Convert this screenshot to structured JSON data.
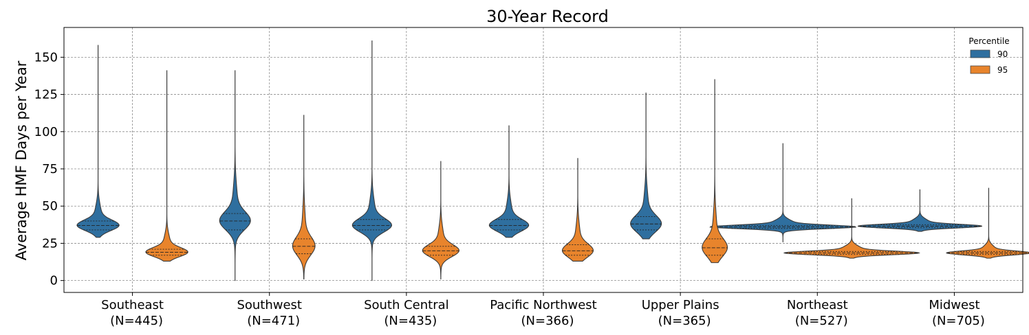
{
  "chart_data": {
    "type": "violin",
    "title": "30-Year Record",
    "xlabel": "",
    "ylabel": "Average HMF Days per Year",
    "ylim": [
      -8,
      170
    ],
    "yticks": [
      0,
      25,
      50,
      75,
      100,
      125,
      150
    ],
    "grid": true,
    "legend": {
      "title": "Percentile",
      "placement": "top-right",
      "entries": [
        "90",
        "95"
      ]
    },
    "categories": [
      {
        "name": "Southeast",
        "n": "(N=445)"
      },
      {
        "name": "Southwest",
        "n": "(N=471)"
      },
      {
        "name": "South Central",
        "n": "(N=435)"
      },
      {
        "name": "Pacific Northwest",
        "n": "(N=366)"
      },
      {
        "name": "Upper Plains",
        "n": "(N=365)"
      },
      {
        "name": "Northeast",
        "n": "(N=527)"
      },
      {
        "name": "Midwest",
        "n": "(N=705)"
      }
    ],
    "series": [
      {
        "name": "90",
        "color": "#2f6f9f",
        "violins": [
          {
            "min": 29,
            "max": 158,
            "q1": 34,
            "median": 37,
            "q3": 40,
            "peak_width": 0.75,
            "spread": 3.5
          },
          {
            "min": 0,
            "max": 141,
            "q1": 34,
            "median": 40,
            "q3": 45,
            "peak_width": 0.55,
            "spread": 6
          },
          {
            "min": 0,
            "max": 161,
            "q1": 34,
            "median": 37,
            "q3": 41,
            "peak_width": 0.7,
            "spread": 4.5
          },
          {
            "min": 29,
            "max": 104,
            "q1": 34,
            "median": 37,
            "q3": 41,
            "peak_width": 0.7,
            "spread": 4
          },
          {
            "min": 28,
            "max": 126,
            "q1": 34,
            "median": 38,
            "q3": 43,
            "peak_width": 0.55,
            "spread": 5.5
          },
          {
            "min": 26,
            "max": 92,
            "q1": 35,
            "median": 36,
            "q3": 37,
            "peak_width": 2.6,
            "spread": 1.2
          },
          {
            "min": 33,
            "max": 61,
            "q1": 35.5,
            "median": 36.5,
            "q3": 37.5,
            "peak_width": 2.2,
            "spread": 1.2
          }
        ]
      },
      {
        "name": "95",
        "color": "#e8842c",
        "violins": [
          {
            "min": 13,
            "max": 141,
            "q1": 17,
            "median": 19,
            "q3": 21,
            "peak_width": 0.75,
            "spread": 3
          },
          {
            "min": 1,
            "max": 111,
            "q1": 18,
            "median": 23,
            "q3": 28,
            "peak_width": 0.4,
            "spread": 6
          },
          {
            "min": 1,
            "max": 80,
            "q1": 17,
            "median": 20,
            "q3": 23,
            "peak_width": 0.65,
            "spread": 4
          },
          {
            "min": 13,
            "max": 82,
            "q1": 17,
            "median": 20,
            "q3": 24,
            "peak_width": 0.55,
            "spread": 4.5
          },
          {
            "min": 12,
            "max": 135,
            "q1": 17,
            "median": 22,
            "q3": 28,
            "peak_width": 0.45,
            "spread": 6
          },
          {
            "min": 15,
            "max": 55,
            "q1": 17.5,
            "median": 18.5,
            "q3": 19.5,
            "peak_width": 2.4,
            "spread": 1.2
          },
          {
            "min": 15,
            "max": 62,
            "q1": 17.5,
            "median": 18.5,
            "q3": 19.5,
            "peak_width": 1.5,
            "spread": 1.3
          }
        ]
      }
    ]
  }
}
